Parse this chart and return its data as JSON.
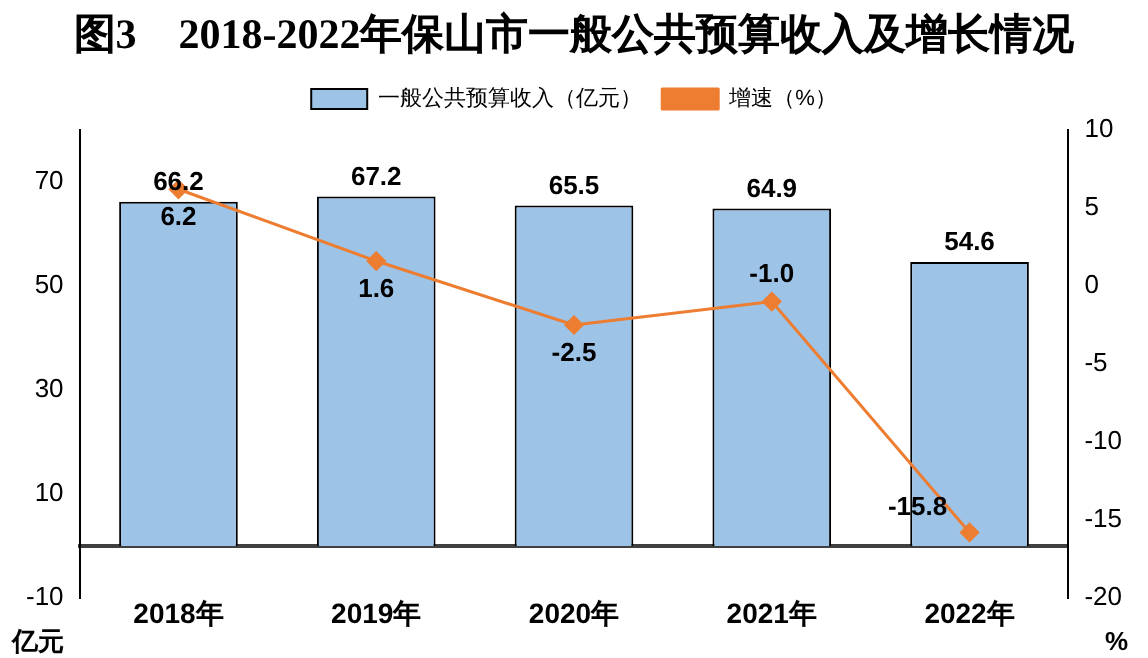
{
  "chart_data": {
    "type": "bar",
    "title": "图3　2018-2022年保山市一般公共预算收入及增长情况",
    "categories": [
      "2018年",
      "2019年",
      "2020年",
      "2021年",
      "2022年"
    ],
    "series": [
      {
        "name": "一般公共预算收入（亿元）",
        "color": "#9dc3e6",
        "values": [
          66.2,
          67.2,
          65.5,
          64.9,
          54.6
        ]
      },
      {
        "name": "增速（%）",
        "type": "line",
        "axis": "y2",
        "color": "#ed7d31",
        "values": [
          6.2,
          1.6,
          -2.5,
          -1.0,
          -15.8
        ],
        "value_labels": [
          "6.2",
          "1.6",
          "-2.5",
          "-1.0",
          "-15.8"
        ]
      }
    ],
    "ylabel": "亿元",
    "y2label": "%",
    "ylim": [
      -10,
      80
    ],
    "yticks": [
      -10,
      10,
      30,
      50,
      70
    ],
    "y2lim": [
      -20,
      10
    ],
    "y2ticks": [
      -20,
      -15,
      -10,
      -5,
      0,
      5,
      10
    ],
    "marker": "diamond",
    "legend": "top",
    "grid": false,
    "data_labels": true
  }
}
